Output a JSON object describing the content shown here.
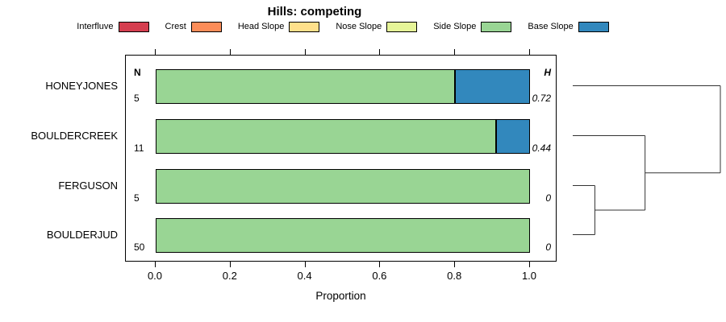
{
  "title": "Hills: competing",
  "legend": [
    {
      "label": "Interfluve",
      "color": "#d53e4f"
    },
    {
      "label": "Crest",
      "color": "#fc8d59"
    },
    {
      "label": "Head Slope",
      "color": "#fee08b"
    },
    {
      "label": "Nose Slope",
      "color": "#e6f598"
    },
    {
      "label": "Side Slope",
      "color": "#99d594"
    },
    {
      "label": "Base Slope",
      "color": "#3288bd"
    }
  ],
  "chart_data": {
    "type": "bar",
    "orientation": "horizontal",
    "stacked": true,
    "title": "Hills: competing",
    "categories": [
      "HONEYJONES",
      "BOULDERCREEK",
      "FERGUSON",
      "BOULDERJUD"
    ],
    "n_header": "N",
    "h_header": "H",
    "n_values": [
      "5",
      "11",
      "5",
      "50"
    ],
    "h_values": [
      "0.72",
      "0.44",
      "0",
      "0"
    ],
    "series": [
      {
        "name": "Side Slope",
        "color": "#99d594",
        "values": [
          0.8,
          0.91,
          1.0,
          1.0
        ]
      },
      {
        "name": "Base Slope",
        "color": "#3288bd",
        "values": [
          0.2,
          0.09,
          0,
          0
        ]
      }
    ],
    "xlabel": "Proportion",
    "xticks": [
      "0.0",
      "0.2",
      "0.4",
      "0.6",
      "0.8",
      "1.0"
    ],
    "xlim": [
      0,
      1
    ],
    "grid": false,
    "legend_position": "top"
  },
  "dendrogram": {
    "leaf_order": [
      "HONEYJONES",
      "BOULDERCREEK",
      "FERGUSON",
      "BOULDERJUD"
    ],
    "merges": [
      {
        "members": [
          "FERGUSON",
          "BOULDERJUD"
        ],
        "height": 0.15
      },
      {
        "members": [
          "FERGUSON+BOULDERJUD",
          "BOULDERCREEK"
        ],
        "height": 0.49
      },
      {
        "members": [
          "FERGUSON+BOULDERJUD+BOULDERCREEK",
          "HONEYJONES"
        ],
        "height": 1.0
      }
    ]
  }
}
